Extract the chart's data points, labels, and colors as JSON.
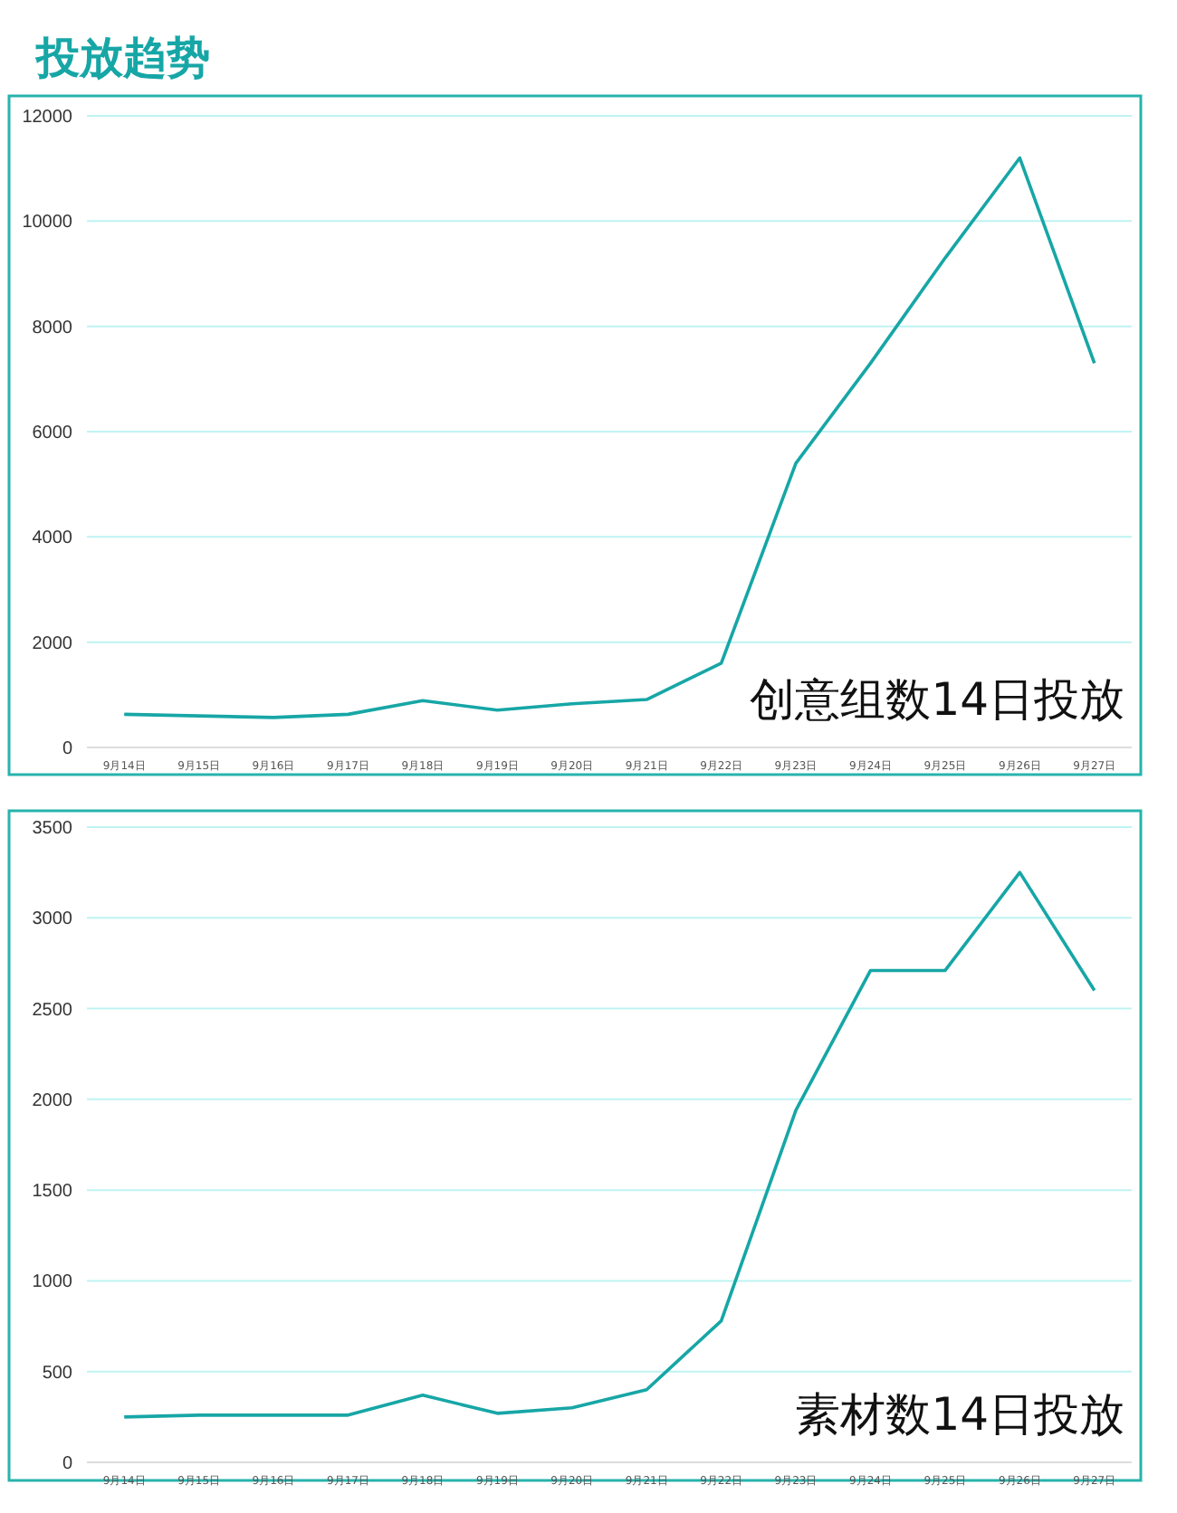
{
  "chart_data": [
    {
      "type": "line",
      "title": "投放趋势",
      "categories": [
        "9月14日",
        "9月15日",
        "9月16日",
        "9月17日",
        "9月18日",
        "9月19日",
        "9月20日",
        "9月21日",
        "9月22日",
        "9月23日",
        "9月24日",
        "9月25日",
        "9月26日",
        "9月27日"
      ],
      "series": [
        {
          "color": "#17a6a6",
          "values": [
            630,
            600,
            570,
            630,
            890,
            710,
            830,
            910,
            1600,
            5400,
            7300,
            9300,
            11200,
            7300
          ]
        }
      ],
      "ylim": [
        0,
        12000
      ],
      "yticks": [
        0,
        2000,
        4000,
        6000,
        8000,
        10000,
        12000
      ],
      "grid": "y",
      "marker": "none",
      "line_style": "solid",
      "annotations": [
        "创意组数14日投放"
      ]
    },
    {
      "type": "line",
      "categories": [
        "9月14日",
        "9月15日",
        "9月16日",
        "9月17日",
        "9月18日",
        "9月19日",
        "9月20日",
        "9月21日",
        "9月22日",
        "9月23日",
        "9月24日",
        "9月25日",
        "9月26日",
        "9月27日"
      ],
      "series": [
        {
          "color": "#17a6a6",
          "values": [
            250,
            260,
            260,
            260,
            370,
            270,
            300,
            400,
            780,
            1940,
            2710,
            2710,
            3250,
            2600
          ]
        }
      ],
      "ylim": [
        0,
        3500
      ],
      "yticks": [
        0,
        500,
        1000,
        1500,
        2000,
        2500,
        3000,
        3500
      ],
      "grid": "y",
      "marker": "none",
      "line_style": "solid",
      "annotations": [
        "素材数14日投放"
      ]
    }
  ]
}
